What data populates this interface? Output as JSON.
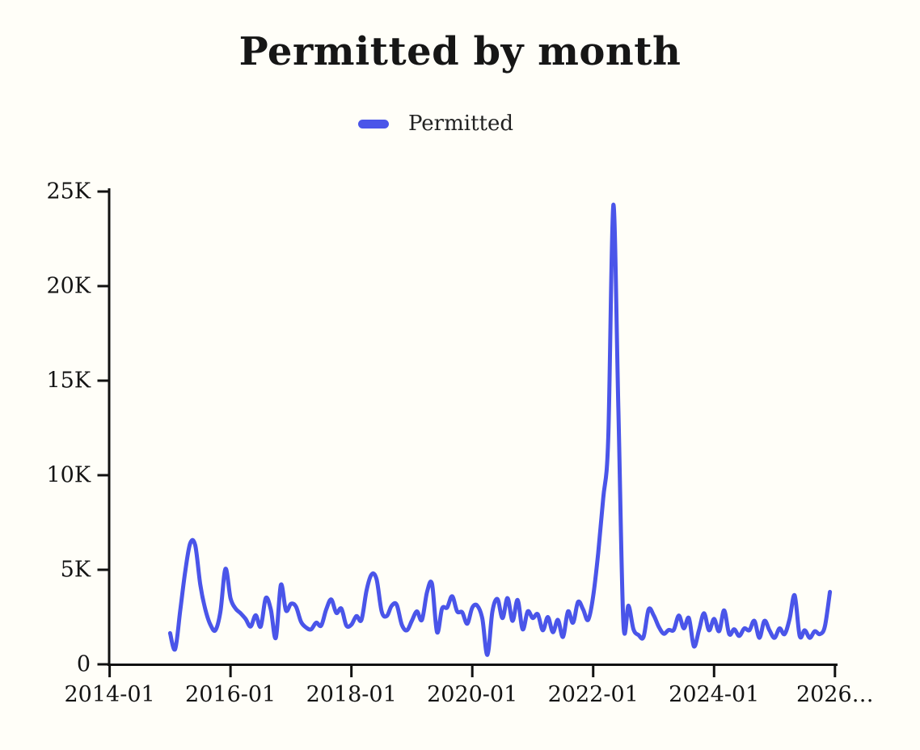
{
  "page": {
    "background": "#FFFEF8"
  },
  "header": {
    "title": "Permitted by month"
  },
  "legend": {
    "items": [
      {
        "label": "Permitted",
        "color": "#4A55E9"
      }
    ]
  },
  "chart_data": {
    "type": "line",
    "title": "Permitted by month",
    "xlabel": "",
    "ylabel": "",
    "grid": false,
    "legend_position": "top",
    "ylim": [
      0,
      25000
    ],
    "y_axis": {
      "tick_values": [
        0,
        5000,
        10000,
        15000,
        20000,
        25000
      ],
      "tick_labels": [
        "0",
        "5K",
        "10K",
        "15K",
        "20K",
        "25K"
      ]
    },
    "x_axis": {
      "tick_months_from_2014_01": [
        0,
        24,
        48,
        72,
        96,
        120,
        144
      ],
      "tick_labels": [
        "2014-01",
        "2016-01",
        "2018-01",
        "2020-01",
        "2022-01",
        "2024-01",
        "2026…"
      ]
    },
    "series": [
      {
        "name": "Permitted",
        "color": "#4A55E9",
        "x": [
          "2015-01",
          "2015-02",
          "2015-03",
          "2015-04",
          "2015-05",
          "2015-06",
          "2015-07",
          "2015-08",
          "2015-09",
          "2015-10",
          "2015-11",
          "2015-12",
          "2016-01",
          "2016-02",
          "2016-03",
          "2016-04",
          "2016-05",
          "2016-06",
          "2016-07",
          "2016-08",
          "2016-09",
          "2016-10",
          "2016-11",
          "2016-12",
          "2017-01",
          "2017-02",
          "2017-03",
          "2017-04",
          "2017-05",
          "2017-06",
          "2017-07",
          "2017-08",
          "2017-09",
          "2017-10",
          "2017-11",
          "2017-12",
          "2018-01",
          "2018-02",
          "2018-03",
          "2018-04",
          "2018-05",
          "2018-06",
          "2018-07",
          "2018-08",
          "2018-09",
          "2018-10",
          "2018-11",
          "2018-12",
          "2019-01",
          "2019-02",
          "2019-03",
          "2019-04",
          "2019-05",
          "2019-06",
          "2019-07",
          "2019-08",
          "2019-09",
          "2019-10",
          "2019-11",
          "2019-12",
          "2020-01",
          "2020-02",
          "2020-03",
          "2020-04",
          "2020-05",
          "2020-06",
          "2020-07",
          "2020-08",
          "2020-09",
          "2020-10",
          "2020-11",
          "2020-12",
          "2021-01",
          "2021-02",
          "2021-03",
          "2021-04",
          "2021-05",
          "2021-06",
          "2021-07",
          "2021-08",
          "2021-09",
          "2021-10",
          "2021-11",
          "2021-12",
          "2022-01",
          "2022-02",
          "2022-03",
          "2022-04",
          "2022-05",
          "2022-06",
          "2022-07",
          "2022-08",
          "2022-09",
          "2022-10",
          "2022-11",
          "2022-12",
          "2023-01",
          "2023-02",
          "2023-03",
          "2023-04",
          "2023-05",
          "2023-06",
          "2023-07",
          "2023-08",
          "2023-09",
          "2023-10",
          "2023-11",
          "2023-12",
          "2024-01",
          "2024-02",
          "2024-03",
          "2024-04",
          "2024-05",
          "2024-06",
          "2024-07",
          "2024-08",
          "2024-09",
          "2024-10",
          "2024-11",
          "2024-12",
          "2025-01",
          "2025-02",
          "2025-03",
          "2025-04",
          "2025-05",
          "2025-06",
          "2025-07",
          "2025-08",
          "2025-09",
          "2025-10",
          "2025-11",
          "2025-12"
        ],
        "values": [
          1650,
          800,
          2800,
          4900,
          6400,
          6300,
          4200,
          2900,
          2100,
          1800,
          2800,
          5050,
          3500,
          2950,
          2700,
          2400,
          2000,
          2600,
          2000,
          3500,
          2900,
          1400,
          4200,
          2850,
          3200,
          3050,
          2250,
          1950,
          1850,
          2200,
          2050,
          2900,
          3430,
          2720,
          2950,
          2050,
          2100,
          2550,
          2350,
          3900,
          4750,
          4500,
          2800,
          2550,
          3100,
          3150,
          2100,
          1800,
          2300,
          2800,
          2350,
          3800,
          4250,
          1700,
          2950,
          3000,
          3600,
          2800,
          2750,
          2150,
          3000,
          3100,
          2400,
          500,
          2800,
          3450,
          2450,
          3500,
          2300,
          3400,
          1850,
          2800,
          2450,
          2650,
          1800,
          2500,
          1700,
          2350,
          1450,
          2800,
          2200,
          3300,
          2900,
          2350,
          3600,
          5900,
          8800,
          12000,
          24300,
          13500,
          2200,
          3100,
          1850,
          1550,
          1450,
          2900,
          2600,
          2000,
          1620,
          1820,
          1820,
          2580,
          1900,
          2450,
          950,
          1800,
          2700,
          1800,
          2400,
          1750,
          2850,
          1600,
          1850,
          1500,
          1900,
          1800,
          2300,
          1400,
          2300,
          1800,
          1400,
          1900,
          1600,
          2400,
          3650,
          1500,
          1800,
          1400,
          1750,
          1600,
          2000,
          3830
        ]
      }
    ]
  }
}
